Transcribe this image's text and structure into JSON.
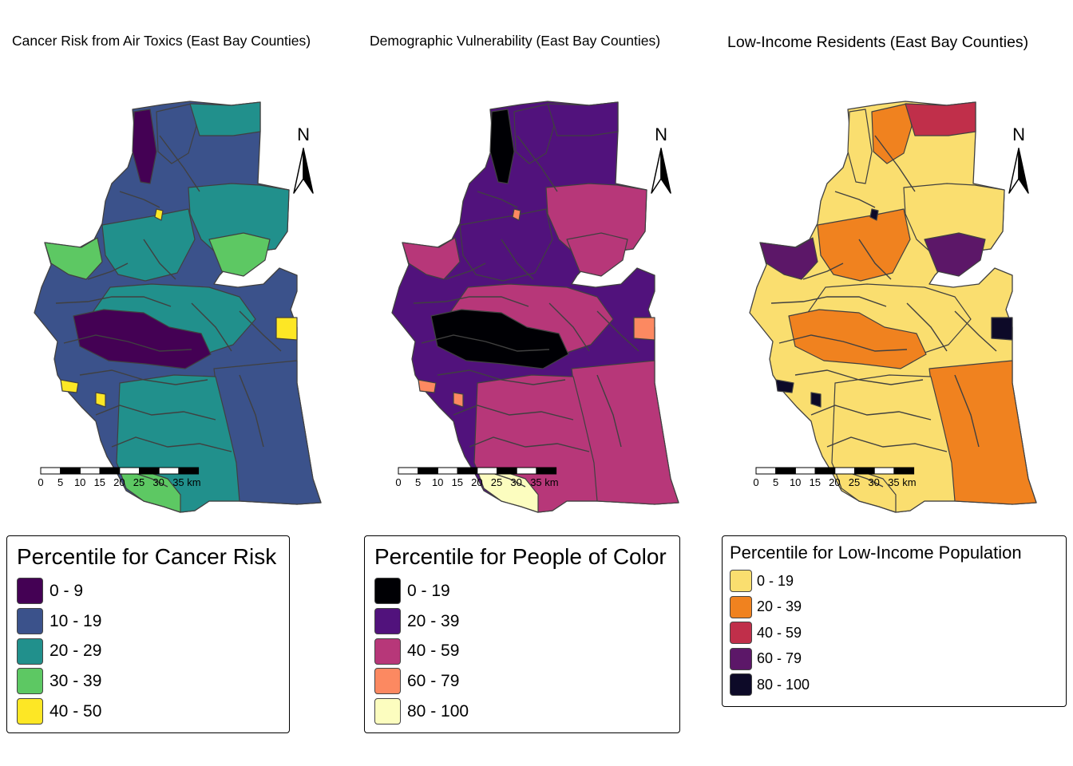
{
  "panels": [
    {
      "title": "Cancer Risk from Air Toxics (East Bay Counties)",
      "north_label": "N",
      "scalebar": {
        "ticks": [
          "0",
          "5",
          "10",
          "15",
          "20",
          "25",
          "30",
          "35 km"
        ]
      },
      "legend": {
        "title": "Percentile for Cancer Risk",
        "items": [
          {
            "label": "0 - 9",
            "color": "#440154"
          },
          {
            "label": "10 - 19",
            "color": "#3b528b"
          },
          {
            "label": "20 - 29",
            "color": "#21908c"
          },
          {
            "label": "30 - 39",
            "color": "#5dc863"
          },
          {
            "label": "40 - 50",
            "color": "#fde725"
          }
        ]
      }
    },
    {
      "title": "Demographic Vulnerability (East Bay Counties)",
      "north_label": "N",
      "scalebar": {
        "ticks": [
          "0",
          "5",
          "10",
          "15",
          "20",
          "25",
          "30",
          "35 km"
        ]
      },
      "legend": {
        "title": "Percentile for People of Color",
        "items": [
          {
            "label": "0 - 19",
            "color": "#000004"
          },
          {
            "label": "20 - 39",
            "color": "#51127c"
          },
          {
            "label": "40 - 59",
            "color": "#b73779"
          },
          {
            "label": "60 - 79",
            "color": "#fc8961"
          },
          {
            "label": "80 - 100",
            "color": "#fcfdbf"
          }
        ]
      }
    },
    {
      "title": "Low-Income Residents (East Bay Counties)",
      "north_label": "N",
      "scalebar": {
        "ticks": [
          "0",
          "5",
          "10",
          "15",
          "20",
          "25",
          "30",
          "35 km"
        ]
      },
      "legend": {
        "title": "Percentile for Low-Income Population",
        "items": [
          {
            "label": "0 - 19",
            "color": "#fade6f"
          },
          {
            "label": "20 - 39",
            "color": "#f0821f"
          },
          {
            "label": "40 - 59",
            "color": "#c02f4a"
          },
          {
            "label": "60 - 79",
            "color": "#5c1768"
          },
          {
            "label": "80 - 100",
            "color": "#0d0a28"
          }
        ]
      }
    }
  ],
  "map_fill": [
    {
      "base": 1,
      "regions": [
        {
          "fill": 0,
          "area": "north-strip"
        },
        {
          "fill": 1,
          "area": "north-center"
        },
        {
          "fill": 2,
          "area": "north-east"
        },
        {
          "fill": 2,
          "area": "east-lobe"
        },
        {
          "fill": 3,
          "area": "east-sub"
        },
        {
          "fill": 3,
          "area": "west-arm"
        },
        {
          "fill": 2,
          "area": "mid-west"
        },
        {
          "fill": 2,
          "area": "center"
        },
        {
          "fill": 0,
          "area": "core-dark"
        },
        {
          "fill": 1,
          "area": "south-east"
        },
        {
          "fill": 2,
          "area": "south"
        },
        {
          "fill": 3,
          "area": "south-tip"
        },
        {
          "fill": 4,
          "area": "spots"
        }
      ]
    },
    {
      "base": 1,
      "regions": [
        {
          "fill": 0,
          "area": "north-strip"
        },
        {
          "fill": 1,
          "area": "north-center"
        },
        {
          "fill": 1,
          "area": "north-east"
        },
        {
          "fill": 2,
          "area": "east-lobe"
        },
        {
          "fill": 2,
          "area": "east-sub"
        },
        {
          "fill": 2,
          "area": "west-arm"
        },
        {
          "fill": 1,
          "area": "mid-west"
        },
        {
          "fill": 2,
          "area": "center"
        },
        {
          "fill": 0,
          "area": "core-dark"
        },
        {
          "fill": 2,
          "area": "south-east"
        },
        {
          "fill": 2,
          "area": "south"
        },
        {
          "fill": 4,
          "area": "south-tip"
        },
        {
          "fill": 3,
          "area": "spots"
        }
      ]
    },
    {
      "base": 0,
      "regions": [
        {
          "fill": 0,
          "area": "north-strip"
        },
        {
          "fill": 1,
          "area": "north-center"
        },
        {
          "fill": 2,
          "area": "north-east"
        },
        {
          "fill": 0,
          "area": "east-lobe"
        },
        {
          "fill": 3,
          "area": "east-sub"
        },
        {
          "fill": 3,
          "area": "west-arm"
        },
        {
          "fill": 1,
          "area": "mid-west"
        },
        {
          "fill": 0,
          "area": "center"
        },
        {
          "fill": 1,
          "area": "core-dark"
        },
        {
          "fill": 1,
          "area": "south-east"
        },
        {
          "fill": 0,
          "area": "south"
        },
        {
          "fill": 0,
          "area": "south-tip"
        },
        {
          "fill": 4,
          "area": "spots"
        }
      ]
    }
  ]
}
